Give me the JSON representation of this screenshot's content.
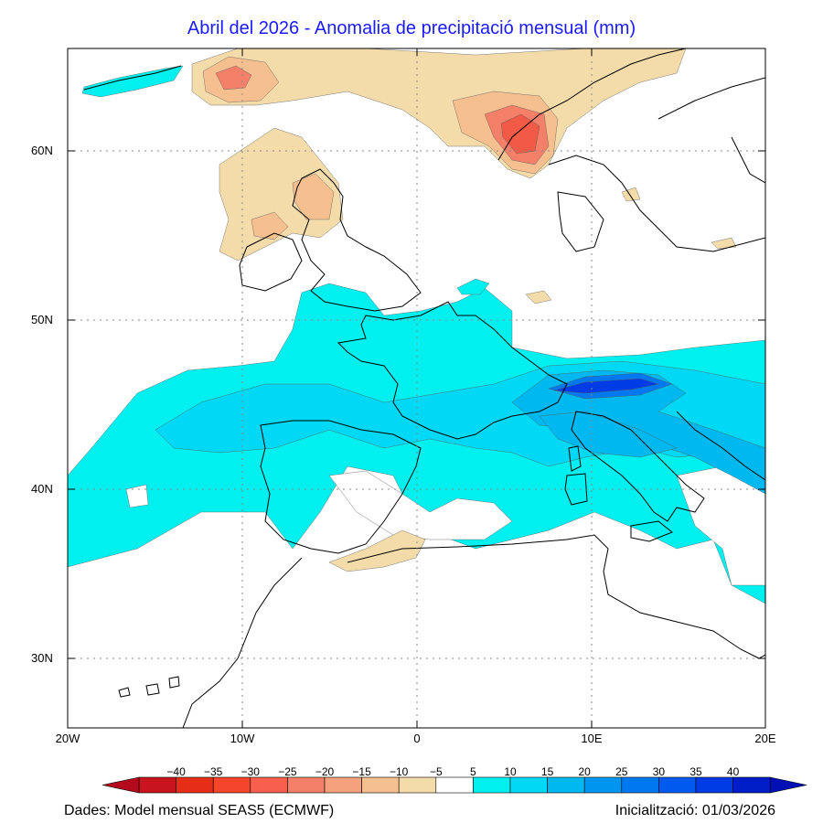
{
  "title": "Abril del 2026 - Anomalia de precipitació mensual (mm)",
  "axes": {
    "lat_labels": [
      "60N",
      "50N",
      "40N",
      "30N"
    ],
    "lon_labels": [
      "20W",
      "10W",
      "0",
      "10E",
      "20E"
    ]
  },
  "colorbar": {
    "labels": [
      "−40",
      "−35",
      "−30",
      "−25",
      "−20",
      "−15",
      "−10",
      "−5",
      "5",
      "10",
      "15",
      "20",
      "25",
      "30",
      "35",
      "40"
    ],
    "colors": [
      "#c8141e",
      "#e62e16",
      "#f5452a",
      "#f7604f",
      "#f5806a",
      "#f6a17d",
      "#f6bf8f",
      "#f3dcaa",
      "#ffffff",
      "#00f0f0",
      "#00d8f5",
      "#00b8f0",
      "#0096f0",
      "#0078f0",
      "#005af0",
      "#003ce6",
      "#001ec8"
    ],
    "low_extend_color": "#b40a1e",
    "high_extend_color": "#0010b4"
  },
  "footer": {
    "source": "Dades: Model mensual SEAS5 (ECMWF)",
    "init": "Inicialització: 01/03/2026"
  },
  "colors": {
    "title": "#1a1aff",
    "positive_light": "#00f0f0",
    "positive_mid": "#00b8f0",
    "positive_strong": "#0050f0",
    "negative_light": "#f3dcaa",
    "negative_mid": "#f6a17d",
    "negative_strong": "#f05a46"
  }
}
